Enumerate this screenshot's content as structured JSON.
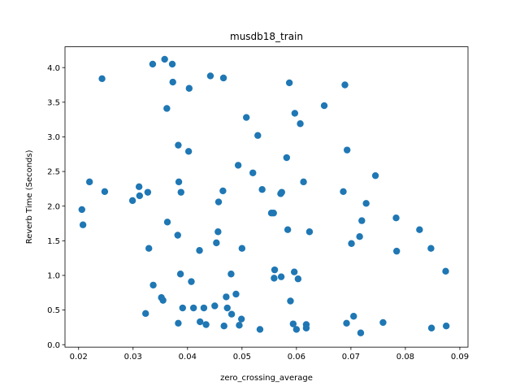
{
  "chart_data": {
    "type": "scatter",
    "title": "musdb18_train",
    "xlabel": "zero_crossing_average",
    "ylabel": "Reverb Time (Seconds)",
    "xlim": [
      0.0175,
      0.0915
    ],
    "ylim": [
      -0.035,
      4.3
    ],
    "xticks": [
      0.02,
      0.03,
      0.04,
      0.05,
      0.06,
      0.07,
      0.08,
      0.09
    ],
    "yticks": [
      0.0,
      0.5,
      1.0,
      1.5,
      2.0,
      2.5,
      3.0,
      3.5,
      4.0
    ],
    "xtick_labels": [
      "0.02",
      "0.03",
      "0.04",
      "0.05",
      "0.06",
      "0.07",
      "0.08",
      "0.09"
    ],
    "ytick_labels": [
      "0.0",
      "0.5",
      "1.0",
      "1.5",
      "2.0",
      "2.5",
      "3.0",
      "3.5",
      "4.0"
    ],
    "grid": false,
    "marker_color": "#1f77b4",
    "series": [
      {
        "x": [
          0.0206,
          0.0208,
          0.022,
          0.0243,
          0.0248,
          0.0299,
          0.0311,
          0.0312,
          0.0323,
          0.0327,
          0.0329,
          0.0336,
          0.0337,
          0.0352,
          0.0355,
          0.0358,
          0.0362,
          0.0363,
          0.0372,
          0.0373,
          0.0382,
          0.0383,
          0.0383,
          0.0384,
          0.0387,
          0.0388,
          0.0391,
          0.0402,
          0.0403,
          0.0407,
          0.0411,
          0.0422,
          0.0423,
          0.043,
          0.0434,
          0.0442,
          0.045,
          0.0453,
          0.0456,
          0.0457,
          0.0465,
          0.0466,
          0.0467,
          0.0471,
          0.0473,
          0.048,
          0.0481,
          0.0489,
          0.0493,
          0.0495,
          0.0499,
          0.05,
          0.0508,
          0.052,
          0.0529,
          0.0533,
          0.0537,
          0.0554,
          0.0558,
          0.0559,
          0.056,
          0.0571,
          0.0572,
          0.0573,
          0.0582,
          0.0584,
          0.0587,
          0.0589,
          0.0594,
          0.0596,
          0.0597,
          0.06,
          0.0603,
          0.0607,
          0.0613,
          0.0618,
          0.0618,
          0.0624,
          0.0651,
          0.0686,
          0.0689,
          0.0692,
          0.0693,
          0.0701,
          0.0705,
          0.0716,
          0.0718,
          0.072,
          0.0728,
          0.0745,
          0.0759,
          0.0783,
          0.0784,
          0.0826,
          0.0847,
          0.0848,
          0.0874,
          0.0875
        ],
        "y": [
          1.95,
          1.73,
          2.35,
          3.84,
          2.21,
          2.08,
          2.28,
          2.15,
          0.45,
          2.2,
          1.39,
          4.05,
          0.86,
          0.68,
          0.64,
          4.12,
          3.41,
          1.77,
          4.05,
          3.79,
          1.58,
          2.88,
          0.31,
          2.35,
          1.02,
          2.2,
          0.53,
          2.79,
          3.7,
          0.91,
          0.53,
          1.36,
          0.33,
          0.53,
          0.29,
          3.88,
          0.56,
          1.47,
          1.63,
          2.06,
          2.22,
          3.85,
          0.27,
          0.69,
          0.53,
          1.02,
          0.44,
          0.73,
          2.59,
          0.28,
          0.37,
          1.39,
          3.28,
          2.48,
          3.02,
          0.22,
          2.24,
          1.9,
          1.9,
          0.96,
          1.08,
          2.18,
          0.98,
          2.2,
          2.7,
          1.66,
          3.78,
          0.63,
          0.3,
          1.05,
          3.34,
          0.22,
          0.95,
          3.19,
          2.35,
          0.29,
          0.24,
          1.63,
          3.45,
          2.21,
          3.75,
          0.31,
          2.81,
          1.46,
          0.41,
          1.56,
          0.17,
          1.79,
          2.04,
          2.44,
          0.32,
          1.83,
          1.35,
          1.66,
          1.39,
          0.24,
          1.06,
          0.27
        ]
      }
    ]
  }
}
